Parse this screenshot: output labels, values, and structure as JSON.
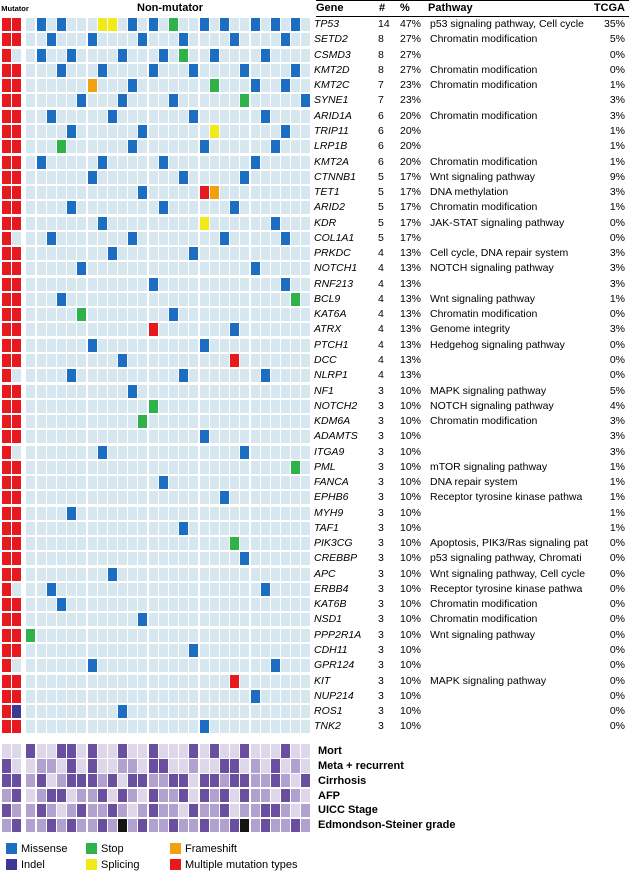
{
  "header": {
    "mutator": "Mutator",
    "non_mutator": "Non-mutator",
    "gene": "Gene",
    "count": "#",
    "percent": "%",
    "pathway": "Pathway",
    "tcga": "TCGA"
  },
  "colors": {
    "none": "#d7e7f0",
    "missense": "#1b6ec2",
    "stop": "#2db34a",
    "frameshift": "#f0a011",
    "indel": "#3f3795",
    "splicing": "#f2ea18",
    "multiple": "#e6191f"
  },
  "clinical_palette": {
    "0": "#ded7ea",
    "1": "#b0a1ce",
    "2": "#6a4fa0",
    "3": "#141414"
  },
  "legend": {
    "items": [
      {
        "label": "Missense",
        "code": "M"
      },
      {
        "label": "Stop",
        "code": "S"
      },
      {
        "label": "Frameshift",
        "code": "F"
      },
      {
        "label": "Indel",
        "code": "I"
      },
      {
        "label": "Splicing",
        "code": "P"
      },
      {
        "label": "Multiple mutation types",
        "code": "R"
      }
    ]
  },
  "chart_data": {
    "type": "heatmap",
    "columns": 30,
    "mutator_columns": 2,
    "cell_code_legend": {
      "0": "no mutation",
      "M": "Missense",
      "S": "Stop",
      "F": "Frameshift",
      "I": "Indel",
      "P": "Splicing",
      "R": "Multiple mutation types"
    },
    "genes": [
      {
        "gene": "TP53",
        "count": 14,
        "percent": "47%",
        "pathway": "p53 signaling pathway, Cell cycle",
        "tcga": "35%",
        "cells": "RR0M0M000PP0M0M0S00M0M00M0M0M0"
      },
      {
        "gene": "SETD2",
        "count": 8,
        "percent": "27%",
        "pathway": "Chromatin modification",
        "tcga": "5%",
        "cells": "RR00M000M0000M000M0000M0000M00"
      },
      {
        "gene": "CSMD3",
        "count": 8,
        "percent": "27%",
        "pathway": "",
        "tcga": "0%",
        "cells": "R00M00M0000M000M0S00M0000M0000"
      },
      {
        "gene": "KMT2D",
        "count": 8,
        "percent": "27%",
        "pathway": "Chromatin modification",
        "tcga": "0%",
        "cells": "RR000M000M0000M000M0000M0000M0"
      },
      {
        "gene": "KMT2C",
        "count": 7,
        "percent": "23%",
        "pathway": "Chromatin modification",
        "tcga": "1%",
        "cells": "RR000000F000M0000000S000M00M00"
      },
      {
        "gene": "SYNE1",
        "count": 7,
        "percent": "23%",
        "pathway": "",
        "tcga": "3%",
        "cells": "RR00000M000M0000M000000S00000M"
      },
      {
        "gene": "ARID1A",
        "count": 6,
        "percent": "20%",
        "pathway": "Chromatin modification",
        "tcga": "3%",
        "cells": "RR00M00000M0000000M000000M0000"
      },
      {
        "gene": "TRIP11",
        "count": 6,
        "percent": "20%",
        "pathway": "",
        "tcga": "1%",
        "cells": "RR0000M000000M000000P000000M00"
      },
      {
        "gene": "LRP1B",
        "count": 6,
        "percent": "20%",
        "pathway": "",
        "tcga": "1%",
        "cells": "RR000S000000M000000M000000M000"
      },
      {
        "gene": "KMT2A",
        "count": 6,
        "percent": "20%",
        "pathway": "Chromatin modification",
        "tcga": "1%",
        "cells": "RR0M00000M00000M00000000M00000"
      },
      {
        "gene": "CTNNB1",
        "count": 5,
        "percent": "17%",
        "pathway": "Wnt signaling pathway",
        "tcga": "9%",
        "cells": "RR000000M00000000M00000M000000"
      },
      {
        "gene": "TET1",
        "count": 5,
        "percent": "17%",
        "pathway": "DNA methylation",
        "tcga": "3%",
        "cells": "RR00000000000M00000RF000000000"
      },
      {
        "gene": "ARID2",
        "count": 5,
        "percent": "17%",
        "pathway": "Chromatin modification",
        "tcga": "1%",
        "cells": "RR0000M00000000M000000M0000000"
      },
      {
        "gene": "KDR",
        "count": 5,
        "percent": "17%",
        "pathway": "JAK-STAT signaling pathway",
        "tcga": "0%",
        "cells": "RR0000000M000000000P000000M000"
      },
      {
        "gene": "COL1A1",
        "count": 5,
        "percent": "17%",
        "pathway": "",
        "tcga": "0%",
        "cells": "R000M0000000M00000000M00000M00"
      },
      {
        "gene": "PRKDC",
        "count": 4,
        "percent": "13%",
        "pathway": "Cell cycle, DNA repair system",
        "tcga": "3%",
        "cells": "RR00000000M0000000M00000000000"
      },
      {
        "gene": "NOTCH1",
        "count": 4,
        "percent": "13%",
        "pathway": "NOTCH signaling pathway",
        "tcga": "3%",
        "cells": "RR00000M0000000000000000M00000"
      },
      {
        "gene": "RNF213",
        "count": 4,
        "percent": "13%",
        "pathway": "",
        "tcga": "3%",
        "cells": "RR000000000000M000000000000M00"
      },
      {
        "gene": "BCL9",
        "count": 4,
        "percent": "13%",
        "pathway": "Wnt signaling pathway",
        "tcga": "1%",
        "cells": "RR000M0000000000000000000000S0"
      },
      {
        "gene": "KAT6A",
        "count": 4,
        "percent": "13%",
        "pathway": "Chromatin modification",
        "tcga": "0%",
        "cells": "RR00000S00000000M0000000000000"
      },
      {
        "gene": "ATRX",
        "count": 4,
        "percent": "13%",
        "pathway": "Genome integrity",
        "tcga": "3%",
        "cells": "RR000000000000R0000000M0000000"
      },
      {
        "gene": "PTCH1",
        "count": 4,
        "percent": "13%",
        "pathway": "Hedgehog signaling pathway",
        "tcga": "0%",
        "cells": "RR000000M0000000000M0000000000"
      },
      {
        "gene": "DCC",
        "count": 4,
        "percent": "13%",
        "pathway": "",
        "tcga": "0%",
        "cells": "RR000000000M0000000000R0000000"
      },
      {
        "gene": "NLRP1",
        "count": 4,
        "percent": "13%",
        "pathway": "",
        "tcga": "0%",
        "cells": "R00000M0000000000M0000000M0000"
      },
      {
        "gene": "NF1",
        "count": 3,
        "percent": "10%",
        "pathway": "MAPK signaling pathway",
        "tcga": "5%",
        "cells": "RR0000000000M00000000000000000"
      },
      {
        "gene": "NOTCH2",
        "count": 3,
        "percent": "10%",
        "pathway": "NOTCH signaling pathway",
        "tcga": "4%",
        "cells": "RR000000000000S000000000000000"
      },
      {
        "gene": "KDM6A",
        "count": 3,
        "percent": "10%",
        "pathway": "Chromatin modification",
        "tcga": "3%",
        "cells": "RR00000000000S0000000000000000"
      },
      {
        "gene": "ADAMTS",
        "count": 3,
        "percent": "10%",
        "pathway": "",
        "tcga": "3%",
        "cells": "RR00000000000000000M0000000000"
      },
      {
        "gene": "ITGA9",
        "count": 3,
        "percent": "10%",
        "pathway": "",
        "tcga": "3%",
        "cells": "R00000000M0000000000000M000000"
      },
      {
        "gene": "PML",
        "count": 3,
        "percent": "10%",
        "pathway": "mTOR signaling pathway",
        "tcga": "1%",
        "cells": "RR00000000000000000000000000S0"
      },
      {
        "gene": "FANCA",
        "count": 3,
        "percent": "10%",
        "pathway": "DNA repair system",
        "tcga": "1%",
        "cells": "RR0000000000000M00000000000000"
      },
      {
        "gene": "EPHB6",
        "count": 3,
        "percent": "10%",
        "pathway": "Receptor tyrosine kinase pathwa",
        "tcga": "1%",
        "cells": "RR0000000000000000000M00000000"
      },
      {
        "gene": "MYH9",
        "count": 3,
        "percent": "10%",
        "pathway": "",
        "tcga": "1%",
        "cells": "RR0000M00000000000000000000000"
      },
      {
        "gene": "TAF1",
        "count": 3,
        "percent": "10%",
        "pathway": "",
        "tcga": "1%",
        "cells": "RR000000000000000M000000000000"
      },
      {
        "gene": "PIK3CG",
        "count": 3,
        "percent": "10%",
        "pathway": "Apoptosis, PIK3/Ras signaling pat",
        "tcga": "0%",
        "cells": "RR00000000000000000000S0000000"
      },
      {
        "gene": "CREBBP",
        "count": 3,
        "percent": "10%",
        "pathway": "p53 signaling pathway, Chromati",
        "tcga": "0%",
        "cells": "RR000000000000000000000M000000"
      },
      {
        "gene": "APC",
        "count": 3,
        "percent": "10%",
        "pathway": "Wnt signaling pathway, Cell cycle",
        "tcga": "0%",
        "cells": "RR00000000M0000000000000000000"
      },
      {
        "gene": "ERBB4",
        "count": 3,
        "percent": "10%",
        "pathway": "Receptor tyrosine kinase pathwa",
        "tcga": "0%",
        "cells": "R000M00000000000000000000M0000"
      },
      {
        "gene": "KAT6B",
        "count": 3,
        "percent": "10%",
        "pathway": "Chromatin modification",
        "tcga": "0%",
        "cells": "RR000M000000000000000000000000"
      },
      {
        "gene": "NSD1",
        "count": 3,
        "percent": "10%",
        "pathway": "Chromatin modification",
        "tcga": "0%",
        "cells": "RR00000000000M0000000000000000"
      },
      {
        "gene": "PPP2R1A",
        "count": 3,
        "percent": "10%",
        "pathway": "Wnt signaling pathway",
        "tcga": "0%",
        "cells": "RRS000000000000000000000000000"
      },
      {
        "gene": "CDH11",
        "count": 3,
        "percent": "10%",
        "pathway": "",
        "tcga": "0%",
        "cells": "RR0000000000000000M00000000000"
      },
      {
        "gene": "GPR124",
        "count": 3,
        "percent": "10%",
        "pathway": "",
        "tcga": "0%",
        "cells": "R0000000M00000000000000000M000"
      },
      {
        "gene": "KIT",
        "count": 3,
        "percent": "10%",
        "pathway": "MAPK signaling pathway",
        "tcga": "0%",
        "cells": "RR00000000000000000000R0000000"
      },
      {
        "gene": "NUP214",
        "count": 3,
        "percent": "10%",
        "pathway": "",
        "tcga": "0%",
        "cells": "RR0000000000000000000000M00000"
      },
      {
        "gene": "ROS1",
        "count": 3,
        "percent": "10%",
        "pathway": "",
        "tcga": "0%",
        "cells": "RI000000000M000000000000000000"
      },
      {
        "gene": "TNK2",
        "count": 3,
        "percent": "10%",
        "pathway": "",
        "tcga": "0%",
        "cells": "RR00000000000000000M0000000000"
      }
    ],
    "clinical": [
      {
        "label": "Mort",
        "cells": "002002202002002000202002000200"
      },
      {
        "label": "Meta + recurrent",
        "cells": "200110202001102200100220102010"
      },
      {
        "label": "Cirrhosis",
        "cells": "221201222120221122022122112102"
      },
      {
        "label": "AFP",
        "cells": "120122011202102112021202110210"
      },
      {
        "label": "UICC Stage",
        "cells": "211210121121012110211201122101"
      },
      {
        "label": "Edmondson-Steiner grade",
        "cells": "121121211213121121121123121121"
      }
    ]
  }
}
